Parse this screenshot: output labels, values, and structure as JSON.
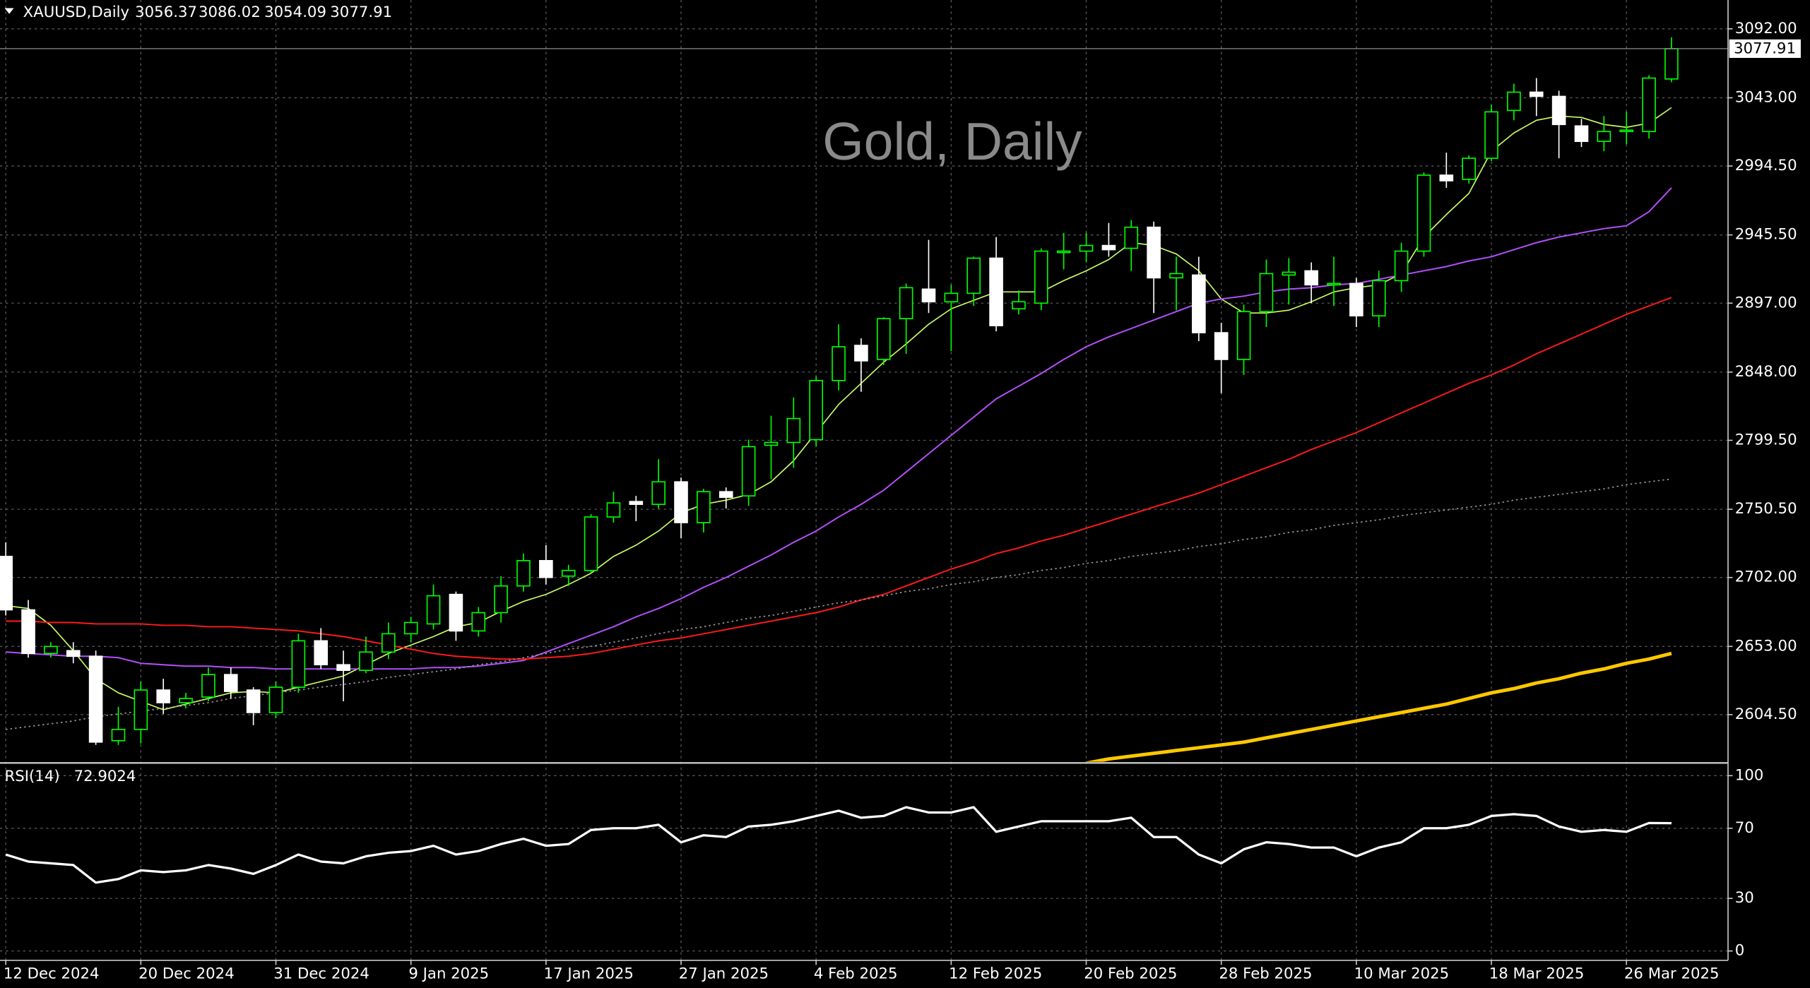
{
  "chart_data": [
    {
      "type": "candlestick",
      "symbol": "XAUUSD,Daily",
      "title": "Gold, Daily",
      "categories": [
        "12 Dec 2024",
        null,
        null,
        null,
        null,
        null,
        "20 Dec 2024",
        null,
        null,
        null,
        null,
        null,
        "31 Dec 2024",
        null,
        null,
        null,
        null,
        null,
        "9 Jan 2025",
        null,
        null,
        null,
        null,
        null,
        "17 Jan 2025",
        null,
        null,
        null,
        null,
        null,
        "27 Jan 2025",
        null,
        null,
        null,
        null,
        null,
        "4 Feb 2025",
        null,
        null,
        null,
        null,
        null,
        "12 Feb 2025",
        null,
        null,
        null,
        null,
        null,
        "20 Feb 2025",
        null,
        null,
        null,
        null,
        null,
        "28 Feb 2025",
        null,
        null,
        null,
        null,
        null,
        "10 Mar 2025",
        null,
        null,
        null,
        null,
        null,
        "18 Mar 2025",
        null,
        null,
        null,
        null,
        null,
        "26 Mar 2025",
        null,
        null
      ],
      "open": [
        2717,
        2679,
        2648,
        2650,
        2646,
        2586,
        2594,
        2622,
        2613,
        2617,
        2633,
        2622,
        2606,
        2624,
        2657,
        2640,
        2636,
        2649,
        2662,
        2669,
        2690,
        2664,
        2677,
        2696,
        2714,
        2703,
        2707,
        2745,
        2756,
        2754,
        2770,
        2741,
        2763,
        2760,
        2796,
        2798,
        2800,
        2842,
        2867,
        2857,
        2886,
        2907,
        2898,
        2904,
        2929,
        2893,
        2897,
        2933,
        2934,
        2938,
        2936,
        2951,
        2915,
        2917,
        2876,
        2857,
        2891,
        2917,
        2920,
        2910,
        2911,
        2888,
        2913,
        2934,
        2988,
        2985,
        3000,
        3034,
        3047,
        3044,
        3023,
        3012,
        3019,
        3019,
        3056.37
      ],
      "high": [
        2727,
        2686,
        2656,
        2656,
        2650,
        2610,
        2628,
        2630,
        2620,
        2638,
        2638,
        2624,
        2628,
        2662,
        2666,
        2650,
        2660,
        2670,
        2674,
        2697,
        2692,
        2681,
        2703,
        2719,
        2725,
        2711,
        2747,
        2763,
        2760,
        2786,
        2773,
        2765,
        2766,
        2800,
        2817,
        2830,
        2845,
        2882,
        2872,
        2887,
        2911,
        2942,
        2910,
        2930,
        2944,
        2906,
        2936,
        2947,
        2947,
        2954,
        2956,
        2955,
        2930,
        2930,
        2883,
        2896,
        2928,
        2929,
        2926,
        2930,
        2915,
        2920,
        2940,
        2990,
        3004,
        3002,
        3038,
        3053,
        3057,
        3048,
        3028,
        3030,
        3033,
        3059,
        3086.02
      ],
      "low": [
        2675,
        2645,
        2645,
        2641,
        2583,
        2583,
        2584,
        2605,
        2609,
        2614,
        2616,
        2597,
        2602,
        2620,
        2637,
        2614,
        2634,
        2644,
        2656,
        2665,
        2657,
        2660,
        2670,
        2692,
        2697,
        2696,
        2705,
        2741,
        2742,
        2751,
        2730,
        2734,
        2751,
        2753,
        2772,
        2780,
        2795,
        2835,
        2834,
        2853,
        2861,
        2890,
        2863,
        2895,
        2877,
        2889,
        2892,
        2921,
        2926,
        2930,
        2920,
        2890,
        2892,
        2870,
        2833,
        2846,
        2880,
        2896,
        2897,
        2895,
        2880,
        2880,
        2905,
        2930,
        2979,
        2982,
        2998,
        3027,
        3030,
        3000,
        3008,
        3005,
        3010,
        3014,
        3054.09
      ],
      "close": [
        2679,
        2648,
        2653,
        2646,
        2585,
        2594,
        2622,
        2613,
        2616,
        2633,
        2621,
        2606,
        2624,
        2657,
        2640,
        2636,
        2649,
        2662,
        2670,
        2689,
        2664,
        2677,
        2696,
        2714,
        2702,
        2707,
        2745,
        2755,
        2754,
        2770,
        2741,
        2763,
        2759,
        2795,
        2798,
        2815,
        2842,
        2866,
        2856,
        2886,
        2908,
        2898,
        2904,
        2929,
        2881,
        2898,
        2934,
        2934,
        2938,
        2935,
        2951,
        2915,
        2918,
        2876,
        2857,
        2891,
        2918,
        2919,
        2910,
        2911,
        2888,
        2913,
        2934,
        2988,
        2984,
        3000,
        3033,
        3047,
        3044,
        3024,
        3012,
        3019,
        3020,
        3057,
        3077.91
      ],
      "up_color": "#00ff00",
      "down_color": "#ffffff",
      "series": [
        {
          "color": "#ccff66",
          "width": 1,
          "values": [
            2682,
            2680,
            2668,
            2650,
            2630,
            2620,
            2614,
            2608,
            2612,
            2616,
            2620,
            2621,
            2620,
            2624,
            2628,
            2632,
            2640,
            2648,
            2654,
            2660,
            2667,
            2670,
            2678,
            2685,
            2690,
            2697,
            2705,
            2717,
            2725,
            2735,
            2748,
            2754,
            2757,
            2761,
            2770,
            2785,
            2805,
            2825,
            2840,
            2855,
            2868,
            2882,
            2893,
            2899,
            2905,
            2905,
            2905,
            2913,
            2920,
            2928,
            2940,
            2938,
            2932,
            2920,
            2900,
            2890,
            2890,
            2892,
            2898,
            2905,
            2908,
            2910,
            2918,
            2944,
            2960,
            2975,
            3005,
            3018,
            3027,
            3030,
            3029,
            3024,
            3022,
            3025,
            3036
          ]
        },
        {
          "color": "#b450ff",
          "width": 1.2,
          "values": [
            2649,
            2648,
            2647,
            2646,
            2646,
            2645,
            2641,
            2640,
            2639,
            2639,
            2638,
            2638,
            2637,
            2637,
            2637,
            2637,
            2637,
            2637,
            2637,
            2638,
            2638,
            2639,
            2641,
            2643,
            2649,
            2655,
            2661,
            2667,
            2674,
            2680,
            2687,
            2695,
            2702,
            2710,
            2718,
            2727,
            2735,
            2745,
            2754,
            2764,
            2777,
            2790,
            2803,
            2816,
            2829,
            2838,
            2847,
            2857,
            2866,
            2873,
            2879,
            2885,
            2891,
            2897,
            2900,
            2902,
            2905,
            2907,
            2908,
            2910,
            2911,
            2914,
            2917,
            2920,
            2923,
            2927,
            2930,
            2935,
            2940,
            2944,
            2947,
            2950,
            2952,
            2962,
            2979
          ]
        },
        {
          "color": "#ff1a1a",
          "width": 1.2,
          "values": [
            2671,
            2671,
            2670,
            2670,
            2669,
            2669,
            2669,
            2668,
            2668,
            2667,
            2667,
            2666,
            2665,
            2664,
            2662,
            2660,
            2657,
            2654,
            2651,
            2648,
            2646,
            2645,
            2644,
            2644,
            2645,
            2646,
            2648,
            2651,
            2654,
            2657,
            2659,
            2662,
            2665,
            2668,
            2671,
            2674,
            2677,
            2681,
            2686,
            2690,
            2696,
            2702,
            2708,
            2713,
            2719,
            2723,
            2728,
            2732,
            2737,
            2742,
            2747,
            2752,
            2757,
            2762,
            2768,
            2774,
            2780,
            2786,
            2793,
            2799,
            2805,
            2812,
            2819,
            2826,
            2833,
            2840,
            2846,
            2853,
            2861,
            2868,
            2875,
            2882,
            2889,
            2895,
            2901
          ]
        },
        {
          "color": "#9a9a9a",
          "width": 1,
          "style": "dotted",
          "values": [
            2594,
            2596,
            2598,
            2600,
            2603,
            2605,
            2607,
            2609,
            2611,
            2613,
            2616,
            2618,
            2620,
            2622,
            2624,
            2626,
            2628,
            2631,
            2633,
            2635,
            2637,
            2640,
            2642,
            2645,
            2648,
            2651,
            2653,
            2656,
            2659,
            2662,
            2665,
            2667,
            2670,
            2673,
            2675,
            2678,
            2681,
            2684,
            2686,
            2689,
            2692,
            2694,
            2697,
            2699,
            2702,
            2704,
            2707,
            2709,
            2712,
            2714,
            2717,
            2719,
            2721,
            2724,
            2726,
            2729,
            2731,
            2734,
            2736,
            2739,
            2741,
            2743,
            2746,
            2748,
            2750,
            2752,
            2754,
            2757,
            2759,
            2761,
            2763,
            2765,
            2768,
            2770,
            2772
          ]
        },
        {
          "color": "#ffc800",
          "width": 3,
          "values": [
            null,
            null,
            null,
            null,
            null,
            null,
            null,
            null,
            null,
            null,
            null,
            null,
            null,
            null,
            null,
            null,
            null,
            null,
            null,
            null,
            null,
            null,
            null,
            null,
            null,
            null,
            null,
            null,
            null,
            null,
            null,
            null,
            null,
            null,
            null,
            null,
            null,
            null,
            null,
            null,
            null,
            null,
            null,
            null,
            null,
            null,
            null,
            null,
            2570,
            2573,
            2575,
            2577,
            2579,
            2581,
            2583,
            2585,
            2588,
            2591,
            2594,
            2597,
            2600,
            2603,
            2606,
            2609,
            2612,
            2616,
            2620,
            2623,
            2627,
            2630,
            2634,
            2637,
            2641,
            2644,
            2648
          ]
        }
      ],
      "ylim": [
        2571,
        3112.5
      ],
      "yticks": [
        {
          "value": 2604.5,
          "label": "2604.50"
        },
        {
          "value": 2653,
          "label": "2653.00"
        },
        {
          "value": 2702,
          "label": "2702.00"
        },
        {
          "value": 2750.5,
          "label": "2750.50"
        },
        {
          "value": 2799.5,
          "label": "2799.50"
        },
        {
          "value": 2848,
          "label": "2848.00"
        },
        {
          "value": 2897,
          "label": "2897.00"
        },
        {
          "value": 2945.5,
          "label": "2945.50"
        },
        {
          "value": 2994.5,
          "label": "2994.50"
        },
        {
          "value": 3043,
          "label": "3043.00"
        },
        {
          "value": 3092,
          "label": "3092.00"
        }
      ],
      "grid": true
    },
    {
      "type": "line",
      "title": "RSI(14)",
      "color": "#ffffff",
      "values": [
        55,
        51,
        50,
        49,
        39,
        41,
        46,
        45,
        46,
        49,
        47,
        44,
        49,
        55,
        51,
        50,
        54,
        56,
        57,
        60,
        55,
        57,
        61,
        64,
        60,
        61,
        69,
        70,
        70,
        72,
        62,
        66,
        65,
        71,
        72,
        74,
        77,
        80,
        76,
        77,
        82,
        79,
        79,
        82,
        68,
        71,
        74,
        74,
        74,
        74,
        76,
        65,
        65,
        55,
        50,
        58,
        62,
        61,
        59,
        59,
        54,
        59,
        62,
        70,
        70,
        72,
        77,
        78,
        77,
        71,
        68,
        69,
        68,
        73,
        72.9024
      ],
      "ylim": [
        -4,
        106.6
      ],
      "yticks": [
        100,
        70,
        30,
        0
      ],
      "grid": true
    }
  ]
}
